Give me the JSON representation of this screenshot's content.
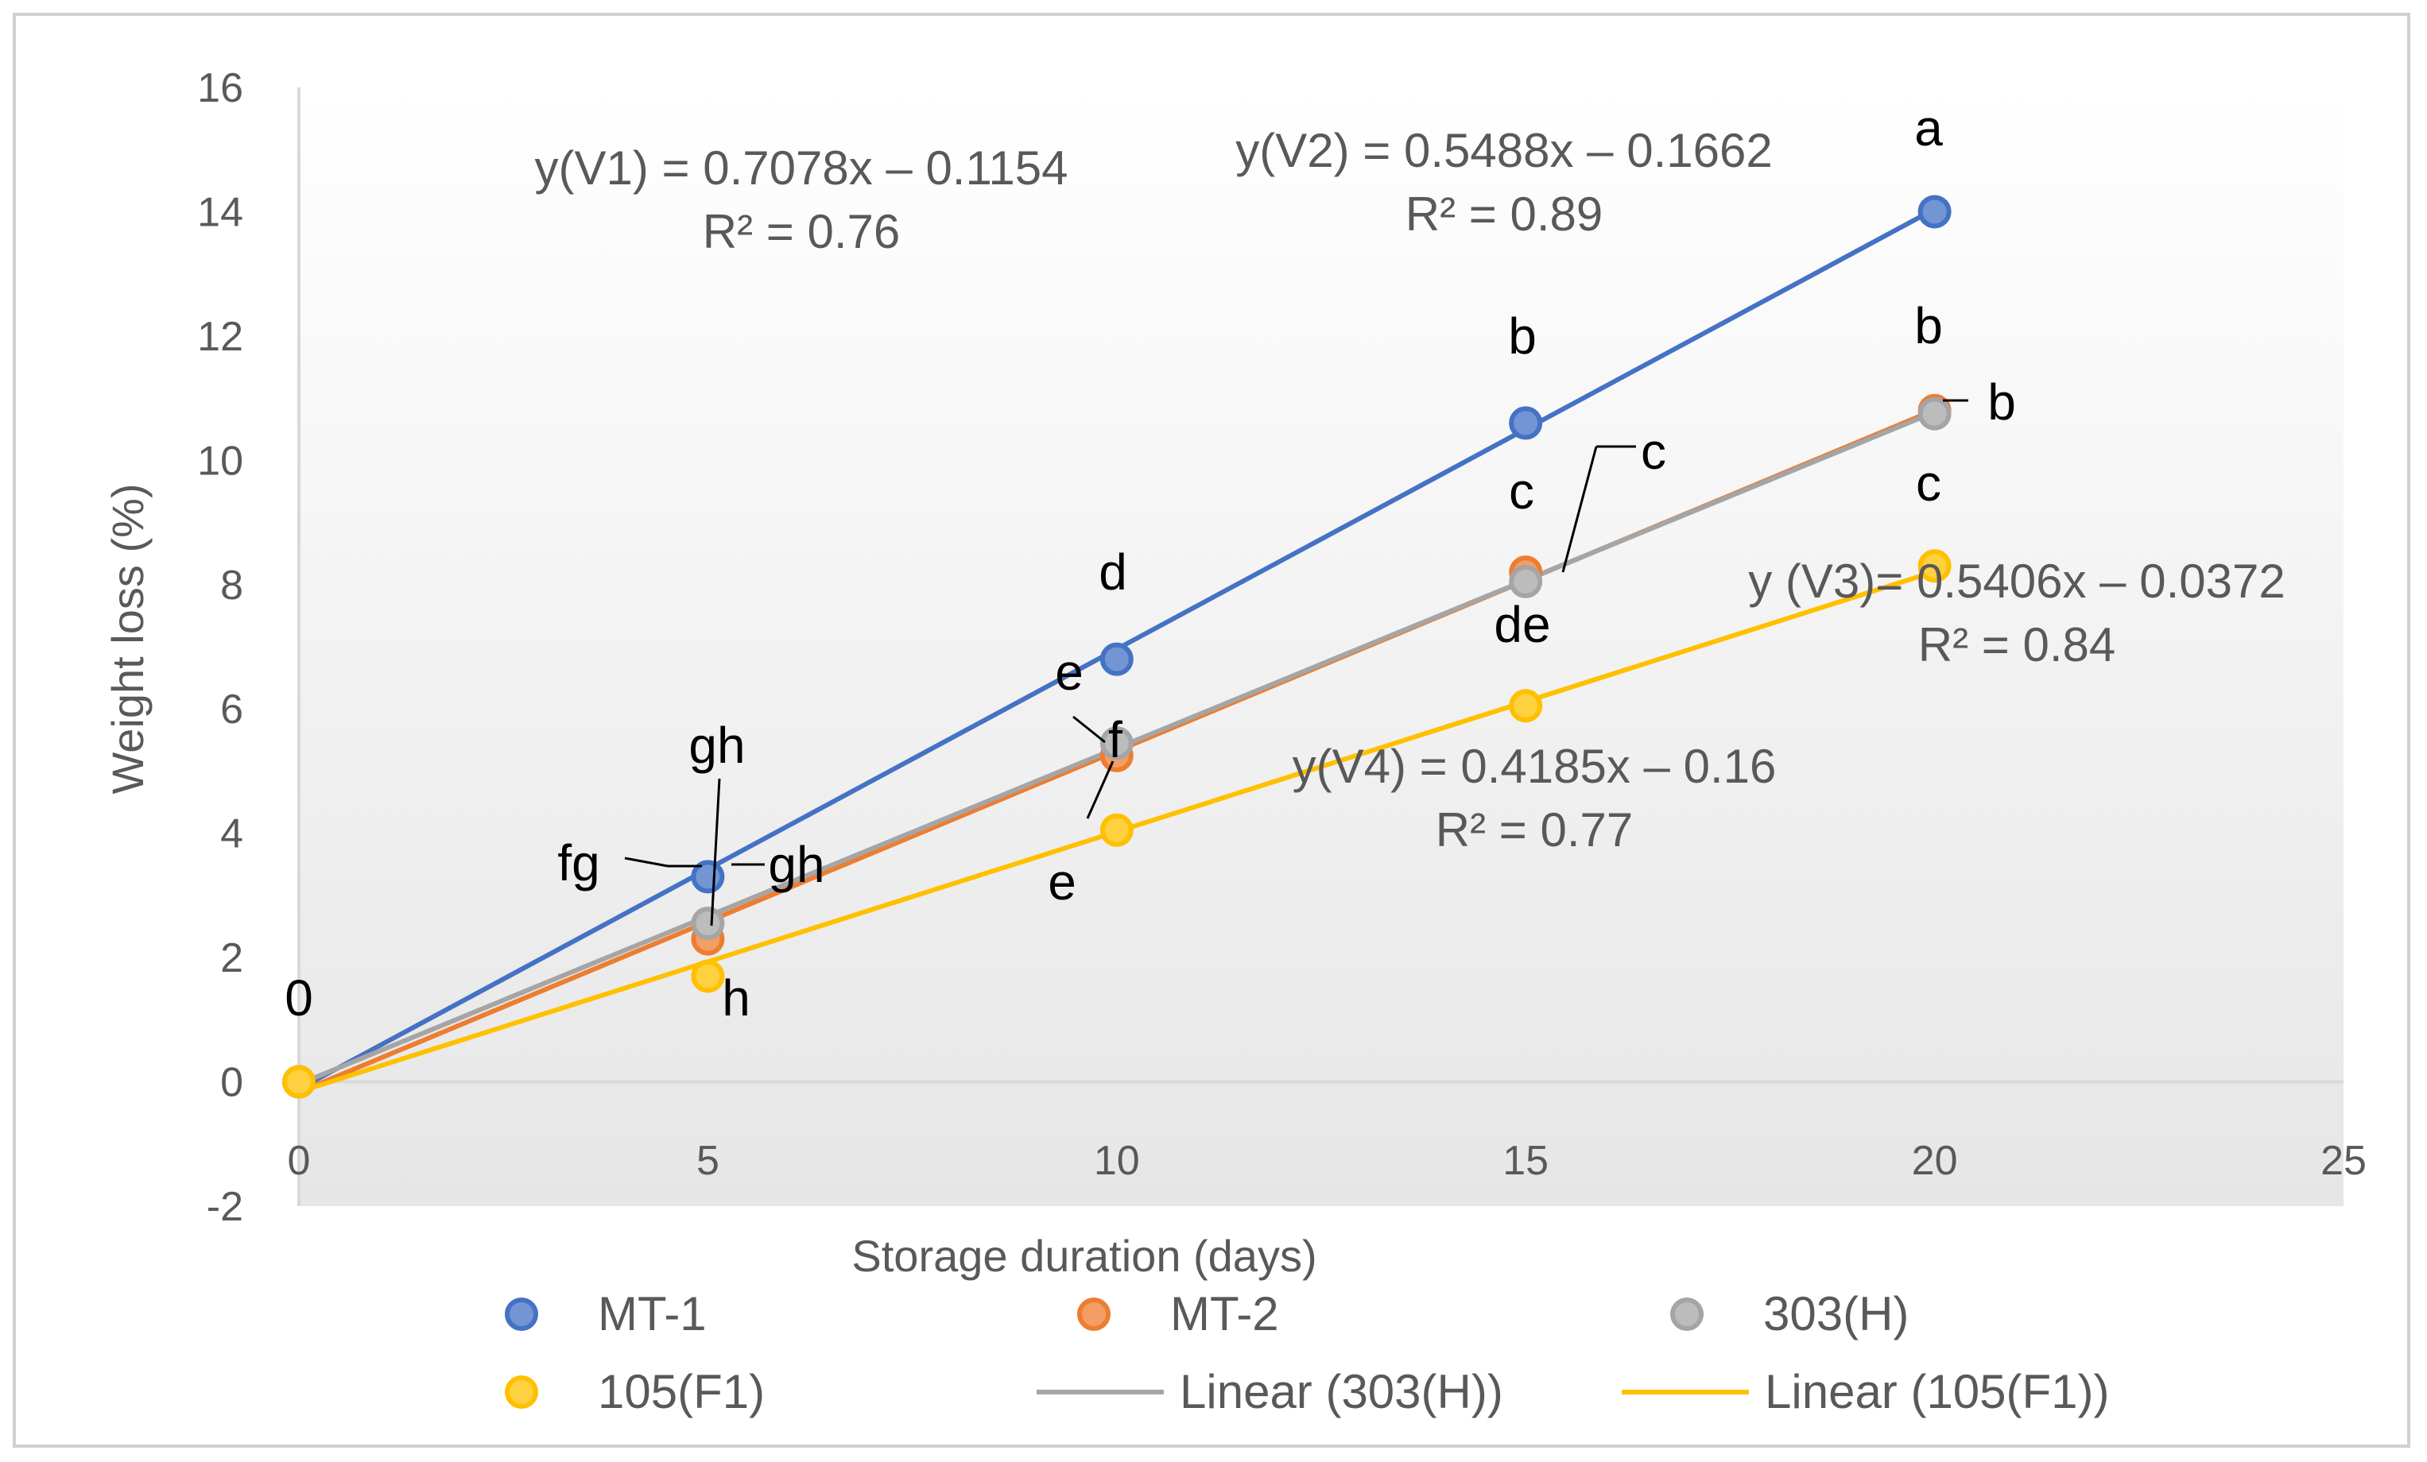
{
  "chart_data": {
    "type": "scatter",
    "title": "",
    "xlabel": "Storage duration (days)",
    "ylabel": "Weight loss (%)",
    "xlim": [
      0,
      25
    ],
    "ylim": [
      -2,
      16
    ],
    "x_ticks": [
      "0",
      "5",
      "10",
      "15",
      "20",
      "25"
    ],
    "y_ticks": [
      "-2",
      "0",
      "2",
      "4",
      "6",
      "8",
      "10",
      "12",
      "14",
      "16"
    ],
    "grid": false,
    "legend_position": "bottom",
    "series": [
      {
        "name": "MT-1",
        "x": [
          0,
          5,
          10,
          15,
          20
        ],
        "y": [
          0,
          3.3,
          6.8,
          10.6,
          14.0
        ],
        "color": "#4472C4"
      },
      {
        "name": "MT-2",
        "x": [
          0,
          5,
          10,
          15,
          20
        ],
        "y": [
          0,
          2.3,
          5.25,
          8.2,
          10.8
        ],
        "color": "#ED7D31"
      },
      {
        "name": "303(H)",
        "x": [
          0,
          5,
          10,
          15,
          20
        ],
        "y": [
          0,
          2.55,
          5.45,
          8.05,
          10.75
        ],
        "color": "#A5A5A5"
      },
      {
        "name": "105(F1)",
        "x": [
          0,
          5,
          10,
          15,
          20
        ],
        "y": [
          0,
          1.7,
          4.05,
          6.05,
          8.3
        ],
        "color": "#FFC000"
      }
    ],
    "trendlines": [
      {
        "series": "MT-1",
        "slope": 0.7078,
        "intercept": -0.1154,
        "color": "#4472C4",
        "in_legend": false
      },
      {
        "series": "MT-2",
        "slope": 0.5488,
        "intercept": -0.1662,
        "color": "#ED7D31",
        "in_legend": false
      },
      {
        "series": "303(H)",
        "name": "Linear (303(H))",
        "slope": 0.5406,
        "intercept": -0.0372,
        "color": "#A5A5A5",
        "in_legend": true
      },
      {
        "series": "105(F1)",
        "name": "Linear (105(F1))",
        "slope": 0.4185,
        "intercept": -0.16,
        "color": "#FFC000",
        "in_legend": true
      }
    ],
    "equations": [
      {
        "eq": "y(V1) = 0.7078x – 0.1154",
        "r2": "R² = 0.76",
        "at": [
          8,
          14.5
        ]
      },
      {
        "eq": "y(V2) = 0.5488x – 0.1662",
        "r2": "R² = 0.89",
        "at": [
          8.5,
          14.7
        ]
      },
      {
        "eq": "y (V3)= 0.5406x – 0.0372",
        "r2": "R² = 0.84",
        "at": [
          8.6,
          13.6
        ]
      },
      {
        "eq": "y(V4) = 0.4185x – 0.16",
        "r2": "R² = 0.77",
        "at": [
          8.5,
          12.6
        ]
      }
    ],
    "significance_letters": [
      {
        "text": "0"
      },
      {
        "text": "a"
      },
      {
        "text": "b"
      },
      {
        "text": "b"
      },
      {
        "text": "b"
      },
      {
        "text": "c"
      },
      {
        "text": "c"
      },
      {
        "text": "c"
      },
      {
        "text": "d"
      },
      {
        "text": "de"
      },
      {
        "text": "e"
      },
      {
        "text": "e"
      },
      {
        "text": "f"
      },
      {
        "text": "gh"
      },
      {
        "text": "gh"
      },
      {
        "text": "fg"
      },
      {
        "text": "h"
      }
    ],
    "legend": [
      {
        "label": "MT-1",
        "kind": "marker",
        "color": "#4472C4"
      },
      {
        "label": "MT-2",
        "kind": "marker",
        "color": "#ED7D31"
      },
      {
        "label": "303(H)",
        "kind": "marker",
        "color": "#A5A5A5"
      },
      {
        "label": "105(F1)",
        "kind": "marker",
        "color": "#FFC000"
      },
      {
        "label": "Linear (303(H))",
        "kind": "line",
        "color": "#A5A5A5"
      },
      {
        "label": "Linear (105(F1))",
        "kind": "line",
        "color": "#FFC000"
      }
    ]
  }
}
